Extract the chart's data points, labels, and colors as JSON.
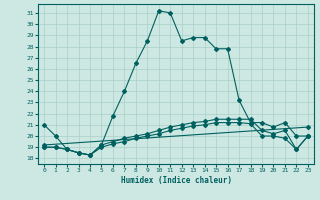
{
  "xlabel": "Humidex (Indice chaleur)",
  "bg_color": "#cde8e2",
  "grid_color": "#a8cfc8",
  "line_color": "#006060",
  "xlim": [
    -0.5,
    23.5
  ],
  "ylim": [
    17.5,
    31.8
  ],
  "yticks": [
    18,
    19,
    20,
    21,
    22,
    23,
    24,
    25,
    26,
    27,
    28,
    29,
    30,
    31
  ],
  "xticks": [
    0,
    1,
    2,
    3,
    4,
    5,
    6,
    7,
    8,
    9,
    10,
    11,
    12,
    13,
    14,
    15,
    16,
    17,
    18,
    19,
    20,
    21,
    22,
    23
  ],
  "line1_x": [
    0,
    1,
    2,
    3,
    4,
    5,
    6,
    7,
    8,
    9,
    10,
    11,
    12,
    13,
    14,
    15,
    16,
    17,
    18,
    19,
    20,
    21,
    22,
    23
  ],
  "line1_y": [
    21.0,
    20.0,
    18.8,
    18.5,
    18.3,
    19.2,
    21.8,
    24.0,
    26.5,
    28.5,
    31.2,
    31.0,
    28.5,
    28.8,
    28.8,
    27.8,
    27.8,
    23.2,
    21.2,
    21.2,
    20.8,
    21.2,
    20.0,
    20.0
  ],
  "line2_x": [
    0,
    1,
    2,
    3,
    4,
    5,
    6,
    7,
    8,
    9,
    10,
    11,
    12,
    13,
    14,
    15,
    16,
    17,
    18,
    19,
    20,
    21,
    22,
    23
  ],
  "line2_y": [
    19.0,
    19.0,
    18.8,
    18.5,
    18.3,
    19.2,
    19.5,
    19.8,
    20.0,
    20.2,
    20.5,
    20.8,
    21.0,
    21.2,
    21.3,
    21.5,
    21.5,
    21.5,
    21.5,
    20.5,
    20.2,
    20.5,
    18.8,
    20.0
  ],
  "line3_x": [
    0,
    1,
    2,
    3,
    4,
    5,
    6,
    7,
    8,
    9,
    10,
    11,
    12,
    13,
    14,
    15,
    16,
    17,
    18,
    19,
    20,
    21,
    22,
    23
  ],
  "line3_y": [
    19.0,
    19.0,
    18.8,
    18.5,
    18.3,
    19.0,
    19.3,
    19.5,
    19.8,
    20.0,
    20.2,
    20.5,
    20.7,
    20.9,
    21.0,
    21.2,
    21.2,
    21.2,
    21.1,
    20.0,
    20.0,
    19.8,
    18.8,
    20.0
  ],
  "line4_x": [
    0,
    23
  ],
  "line4_y": [
    19.2,
    20.8
  ]
}
